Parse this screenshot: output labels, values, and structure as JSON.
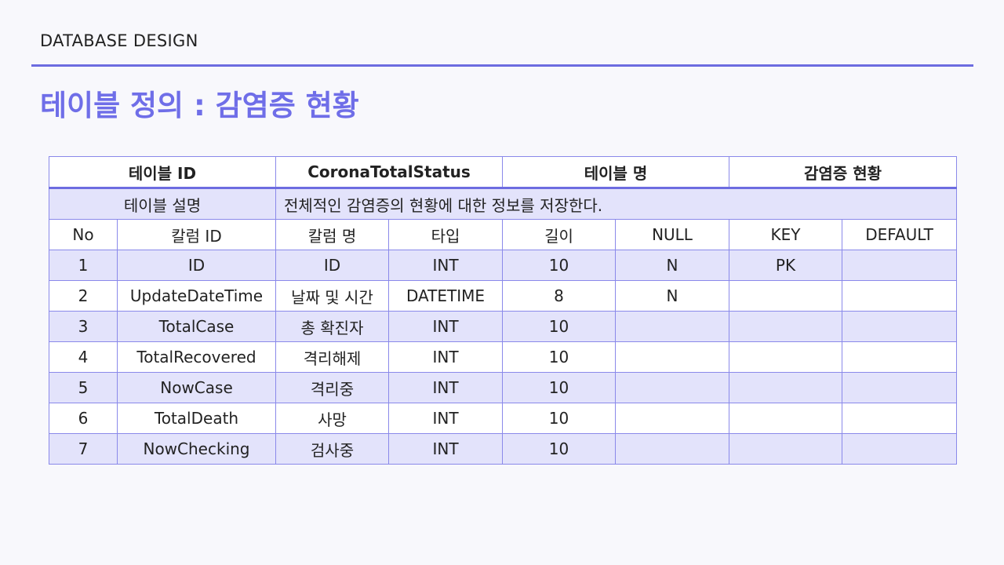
{
  "header": {
    "section": "DATABASE DESIGN",
    "title": "테이블 정의 : 감염증 현황"
  },
  "table": {
    "top": {
      "id_label": "테이블 ID",
      "id_value": "CoronaTotalStatus",
      "name_label": "테이블 명",
      "name_value": "감염증 현황"
    },
    "description": {
      "label": "테이블 설명",
      "text": "전체적인 감염증의 현황에 대한 정보를 저장한다."
    },
    "columns": [
      "No",
      "칼럼 ID",
      "칼럼 명",
      "타입",
      "길이",
      "NULL",
      "KEY",
      "DEFAULT"
    ],
    "rows": [
      [
        "1",
        "ID",
        "ID",
        "INT",
        "10",
        "N",
        "PK",
        ""
      ],
      [
        "2",
        "UpdateDateTime",
        "날짜 및 시간",
        "DATETIME",
        "8",
        "N",
        "",
        ""
      ],
      [
        "3",
        "TotalCase",
        "총 확진자",
        "INT",
        "10",
        "",
        "",
        ""
      ],
      [
        "4",
        "TotalRecovered",
        "격리해제",
        "INT",
        "10",
        "",
        "",
        ""
      ],
      [
        "5",
        "NowCase",
        "격리중",
        "INT",
        "10",
        "",
        "",
        ""
      ],
      [
        "6",
        "TotalDeath",
        "사망",
        "INT",
        "10",
        "",
        "",
        ""
      ],
      [
        "7",
        "NowChecking",
        "검사중",
        "INT",
        "10",
        "",
        "",
        ""
      ]
    ]
  },
  "colors": {
    "accent": "#6f6ee8",
    "rule": "#6d6ce0",
    "row_shade": "#e3e3fb",
    "border": "#8a89ea"
  }
}
